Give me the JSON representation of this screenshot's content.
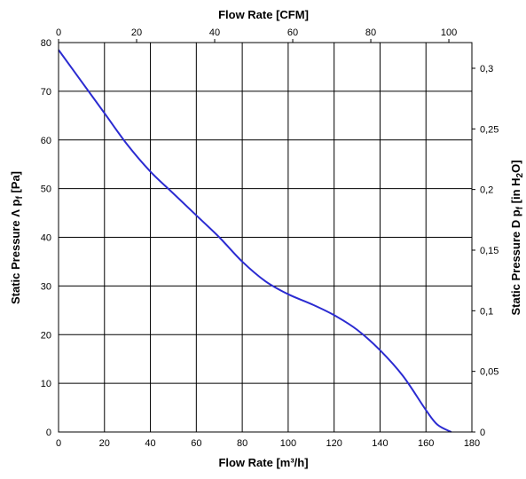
{
  "chart_data": {
    "type": "line",
    "title": "",
    "xlabel": "Flow Rate [m³/h]",
    "x2label": "Flow Rate [CFM]",
    "ylabel": "Static Pressure Λ p",
    "ylabel_sub": "f",
    "ylabel_unit": " [Pa]",
    "y2label": "Static Pressure D p",
    "y2label_sub": "f",
    "y2label_unit_prefix": " [in H",
    "y2label_unit_sub": "2",
    "y2label_unit_suffix": "O]",
    "xlim": [
      0,
      180
    ],
    "ylim": [
      0,
      80
    ],
    "x2lim": [
      0,
      105.9
    ],
    "y2lim": [
      0,
      0.3212
    ],
    "grid": true,
    "line_color": "#2b2bd1",
    "x_ticks": [
      "0",
      "20",
      "40",
      "60",
      "80",
      "100",
      "120",
      "140",
      "160",
      "180"
    ],
    "y_ticks": [
      "0",
      "10",
      "20",
      "30",
      "40",
      "50",
      "60",
      "70",
      "80"
    ],
    "x2_ticks": [
      {
        "value": 0,
        "label": "0"
      },
      {
        "value": 20,
        "label": "20"
      },
      {
        "value": 40,
        "label": "40"
      },
      {
        "value": 60,
        "label": "60"
      },
      {
        "value": 80,
        "label": "80"
      },
      {
        "value": 100,
        "label": "100"
      }
    ],
    "y2_ticks": [
      {
        "value": 0,
        "label": "0"
      },
      {
        "value": 0.05,
        "label": "0,05"
      },
      {
        "value": 0.1,
        "label": "0,1"
      },
      {
        "value": 0.15,
        "label": "0,15"
      },
      {
        "value": 0.2,
        "label": "0,2"
      },
      {
        "value": 0.25,
        "label": "0,25"
      },
      {
        "value": 0.3,
        "label": "0,3"
      }
    ],
    "series": [
      {
        "x": [
          0,
          10,
          20,
          30,
          40,
          50,
          60,
          70,
          80,
          90,
          100,
          110,
          120,
          130,
          140,
          150,
          160,
          165,
          171
        ],
        "y": [
          78.5,
          72,
          65.5,
          59,
          53.5,
          49,
          44.5,
          40,
          35,
          31,
          28.3,
          26.3,
          24,
          21,
          16.8,
          11.5,
          4.5,
          1.5,
          0
        ]
      }
    ]
  }
}
